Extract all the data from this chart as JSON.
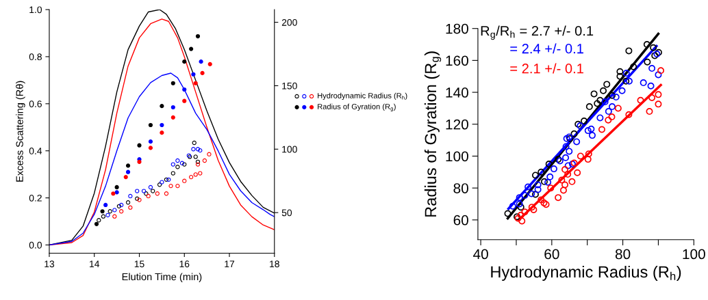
{
  "chart_data": [
    {
      "type": "line",
      "xlabel": "Elution Time (min)",
      "ylabel": "Excess Scattering (Rθ)",
      "xlim": [
        13,
        18
      ],
      "xticks": [
        13,
        14,
        15,
        16,
        17,
        18
      ],
      "ylim": [
        -0.035,
        1.0
      ],
      "yticks": [
        {
          "value": 0,
          "label": "0.0"
        },
        0.2,
        0.4,
        0.6,
        0.8,
        {
          "value": 1,
          "label": "1.0"
        }
      ],
      "y2lim": [
        18,
        210
      ],
      "y2ticks": [
        50,
        100,
        150,
        200
      ],
      "grid": false,
      "legend": "right",
      "line_style": "solid",
      "series": [
        {
          "color": "#000000",
          "x": [
            13,
            13.5,
            13.75,
            14,
            14.25,
            14.5,
            14.75,
            15,
            15.2,
            15.45,
            15.6,
            15.8,
            16,
            16.25,
            16.5,
            16.75,
            17,
            17.25,
            17.5,
            17.75,
            18
          ],
          "values": [
            0,
            0.02,
            0.08,
            0.22,
            0.42,
            0.65,
            0.83,
            0.93,
            0.99,
            1.0,
            0.98,
            0.92,
            0.83,
            0.7,
            0.57,
            0.45,
            0.35,
            0.27,
            0.21,
            0.16,
            0.135
          ]
        },
        {
          "color": "#ff0000",
          "x": [
            13,
            13.5,
            13.75,
            14,
            14.25,
            14.5,
            14.75,
            15,
            15.25,
            15.5,
            15.65,
            15.85,
            16,
            16.25,
            16.5,
            16.75,
            17,
            17.25,
            17.5,
            17.75,
            18
          ],
          "values": [
            0,
            0.01,
            0.04,
            0.14,
            0.32,
            0.56,
            0.76,
            0.88,
            0.94,
            0.96,
            0.95,
            0.88,
            0.8,
            0.65,
            0.5,
            0.36,
            0.25,
            0.17,
            0.12,
            0.085,
            0.065
          ]
        },
        {
          "color": "#0000ff",
          "x": [
            13,
            13.5,
            13.75,
            14,
            14.25,
            14.5,
            14.75,
            15,
            15.25,
            15.5,
            15.7,
            15.85,
            16,
            16.25,
            16.5,
            16.75,
            17,
            17.25,
            17.5,
            17.75,
            17.9,
            18
          ],
          "values": [
            0,
            0.015,
            0.05,
            0.13,
            0.25,
            0.4,
            0.54,
            0.63,
            0.69,
            0.72,
            0.73,
            0.71,
            0.66,
            0.56,
            0.49,
            0.4,
            0.3,
            0.23,
            0.18,
            0.15,
            0.13,
            0.12
          ]
        },
        {
          "type": "scatter",
          "marker": "circle",
          "axis": "y2",
          "color": "#000000",
          "x": [
            14.1,
            14.2,
            14.35,
            14.55,
            14.75,
            14.95,
            15.15,
            15.3,
            15.45,
            15.6,
            15.75,
            15.85,
            16.0,
            16.12,
            16.22,
            16.25,
            16.3
          ],
          "values": [
            44,
            47,
            51,
            55,
            58,
            61,
            65,
            67,
            72,
            76,
            81,
            86,
            88,
            94,
            105,
            94,
            90
          ]
        },
        {
          "type": "scatter",
          "marker": "circle",
          "axis": "y2",
          "color": "#0000ff",
          "x": [
            14.3,
            14.45,
            14.6,
            14.8,
            14.95,
            15.1,
            15.25,
            15.5,
            15.65,
            15.75,
            15.85,
            15.95,
            16.1,
            16.2,
            16.3,
            16.35
          ],
          "values": [
            48,
            52,
            56,
            63,
            67,
            67,
            70,
            74,
            76,
            88,
            91,
            89,
            95,
            100,
            100,
            99
          ]
        },
        {
          "type": "scatter",
          "marker": "circle",
          "axis": "y2",
          "name": "Hydrodynamic Radius (R$_{h}$)",
          "color": "#ff0000",
          "x": [
            14.45,
            14.6,
            14.8,
            15.0,
            15.2,
            15.4,
            15.6,
            15.7,
            15.85,
            16.0,
            16.15,
            16.25,
            16.3,
            16.35,
            16.45,
            16.55
          ],
          "values": [
            47,
            51,
            54,
            60,
            63,
            65,
            65,
            71,
            71,
            75,
            78,
            80,
            88,
            81,
            91,
            96
          ]
        },
        {
          "type": "scatter",
          "marker": "circle",
          "axis": "y2",
          "color": "#000000",
          "x": [
            14.05,
            14.18,
            14.5,
            14.75,
            15,
            15.25,
            15.5,
            15.75,
            16,
            16.15,
            16.3
          ],
          "values": [
            41,
            51,
            70,
            87,
            103,
            119,
            134,
            152,
            169,
            179,
            189
          ]
        },
        {
          "type": "scatter",
          "marker": "circle",
          "axis": "y2",
          "color": "#0000ff",
          "x": [
            14.25,
            14.5,
            14.75,
            15,
            15.25,
            15.5,
            15.75,
            16,
            16.2,
            16.37
          ],
          "values": [
            56,
            66,
            82,
            92,
            106,
            119,
            133,
            147,
            159,
            169
          ]
        },
        {
          "type": "scatter",
          "marker": "circle",
          "axis": "y2",
          "name": "Radius of Gyration (R$_{g}$)",
          "color": "#ff0000",
          "x": [
            14.42,
            14.7,
            15,
            15.25,
            15.5,
            15.75,
            16,
            16.25,
            16.4,
            16.57
          ],
          "values": [
            65,
            78,
            90,
            101,
            113,
            125,
            138,
            152,
            160,
            167
          ]
        }
      ]
    },
    {
      "type": "scatter",
      "xlabel": "Hydrodynamic Radius (R$_{h}$)",
      "ylabel": "Radius of Gyration (R$_{g}$)",
      "xlim": [
        39.2,
        100
      ],
      "xticks": [
        40,
        {
          "value": 50,
          "label": null
        },
        60,
        {
          "value": 70,
          "label": null
        },
        80,
        {
          "value": 90,
          "label": null
        },
        100
      ],
      "ylim": [
        47.6,
        180
      ],
      "yticks": [
        60,
        80,
        100,
        120,
        140,
        160,
        180
      ],
      "grid": false,
      "marker": "circle",
      "line_style": "solid",
      "annotations": [
        "R$_{g}$/R$_{h}$ = 2.7 +/- 0.1",
        "= 2.4 +/- 0.1",
        "= 2.1 +/- 0.1"
      ],
      "series": [
        {
          "color": "#000000",
          "x": [
            47.6,
            50.2,
            51.3,
            55.4,
            55.4,
            57,
            57.9,
            59.2,
            61.8,
            65.1,
            66.3,
            67.4,
            69.1,
            70.6,
            71.9,
            72.8,
            73.6,
            74.5,
            75.5,
            77,
            79.2,
            79.2,
            80.9,
            81.7,
            83,
            86.8,
            86.9,
            88.6,
            89,
            90.1
          ],
          "values": [
            64,
            62,
            68,
            76,
            88,
            90,
            84,
            95,
            98,
            111,
            114,
            120,
            122,
            131,
            139,
            133,
            135,
            141,
            145,
            138,
            153,
            150,
            147,
            166,
            156,
            170,
            159,
            168,
            163,
            165
          ]
        },
        {
          "color": "#0000ff",
          "x": [
            49,
            50.9,
            50.9,
            52.4,
            53.3,
            54.3,
            56.1,
            56.1,
            58.9,
            59.5,
            60.6,
            62.3,
            63.9,
            64,
            64.2,
            64.6,
            64.9,
            64.9,
            65.8,
            67,
            68,
            70.2,
            71.1,
            71.4,
            73.6,
            75,
            76,
            77,
            78.1,
            79.8,
            81,
            81.8,
            85.8,
            87.9,
            88.2,
            89.6,
            90
          ],
          "values": [
            68.6,
            74,
            70,
            75.4,
            80.7,
            76.4,
            79,
            82,
            83.6,
            87,
            92,
            97,
            99,
            106,
            111,
            94,
            112,
            103,
            95,
            109,
            119,
            116,
            117,
            113,
            124,
            134,
            128,
            131,
            137,
            141,
            152,
            147,
            146,
            144,
            155,
            164,
            151
          ]
        },
        {
          "color": "#ff0000",
          "x": [
            50.5,
            51.3,
            51.6,
            52.4,
            54.4,
            54.9,
            57,
            57.8,
            58.4,
            59.7,
            61.8,
            62.8,
            63.3,
            63.7,
            63.7,
            64.5,
            65.7,
            66.3,
            67.2,
            68.1,
            70.2,
            70.4,
            74.1,
            75.9,
            76.9,
            78.7,
            81.7,
            85,
            87.5,
            88.2,
            90,
            90,
            90.7
          ],
          "values": [
            61,
            63,
            59.3,
            65,
            68,
            66.4,
            72.6,
            70.7,
            69.7,
            80,
            74,
            85,
            78.6,
            82,
            91.6,
            88.6,
            84,
            95.7,
            89.6,
            100,
            98,
            101.4,
            116.7,
            122.6,
            124.6,
            130,
            126,
            135,
            128,
            136.6,
            138.6,
            132.6,
            153.6
          ]
        },
        {
          "type": "line",
          "marker": "none",
          "color": "#000000",
          "x": [
            47.6,
            90
          ],
          "values": [
            61,
            176.7
          ]
        },
        {
          "type": "line",
          "marker": "none",
          "color": "#0000ff",
          "x": [
            47.8,
            89.5
          ],
          "values": [
            67,
            169
          ]
        },
        {
          "type": "line",
          "marker": "none",
          "color": "#ff0000",
          "x": [
            50.7,
            90.7
          ],
          "values": [
            60,
            144.6
          ]
        }
      ]
    }
  ]
}
